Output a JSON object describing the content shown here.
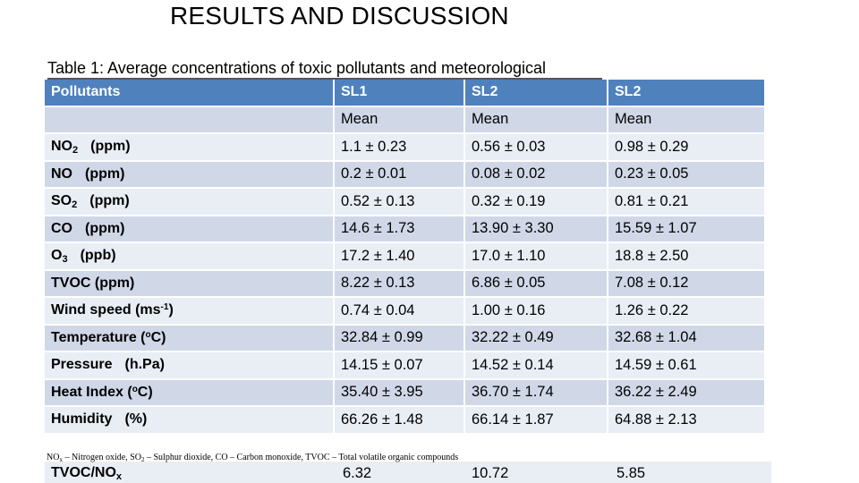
{
  "slide": {
    "title": "RESULTS AND DISCUSSION",
    "caption": "Table 1: Average concentrations of toxic pollutants and meteorological"
  },
  "table": {
    "header": [
      "Pollutants",
      "SL1",
      "SL2",
      "SL2"
    ],
    "subheader": [
      "",
      "Mean",
      "Mean",
      "Mean"
    ],
    "rows": [
      {
        "name": "NO",
        "sub": "2",
        "sup": "",
        "unit": "(ppm)",
        "v1": "1.1 ± 0.23",
        "v2": "0.56 ± 0.03",
        "v3": "0.98 ± 0.29"
      },
      {
        "name": "NO",
        "sub": "",
        "sup": "",
        "unit": "(ppm)",
        "v1": "0.2 ± 0.01",
        "v2": "0.08 ± 0.02",
        "v3": "0.23 ± 0.05"
      },
      {
        "name": "SO",
        "sub": "2",
        "sup": "",
        "unit": "(ppm)",
        "v1": "0.52 ± 0.13",
        "v2": "0.32 ± 0.19",
        "v3": "0.81 ± 0.21"
      },
      {
        "name": "CO",
        "sub": "",
        "sup": "",
        "unit": "(ppm)",
        "v1": "14.6 ± 1.73",
        "v2": "13.90 ± 3.30",
        "v3": "15.59 ± 1.07"
      },
      {
        "name": "O",
        "sub": "3",
        "sup": "",
        "unit": "(ppb)",
        "v1": "17.2 ± 1.40",
        "v2": "17.0 ± 1.10",
        "v3": "18.8 ± 2.50"
      },
      {
        "name": "TVOC (ppm)",
        "sub": "",
        "sup": "",
        "unit": "",
        "v1": "8.22 ± 0.13",
        "v2": "6.86 ± 0.05",
        "v3": "7.08 ± 0.12"
      },
      {
        "name": "Wind speed (ms",
        "sub": "",
        "sup": "-1",
        "unit": ")",
        "v1": "0.74 ± 0.04",
        "v2": "1.00 ± 0.16",
        "v3": "1.26 ± 0.22"
      },
      {
        "name": "Temperature (",
        "sub": "",
        "sup": "o",
        "unit": "C)",
        "v1": "32.84 ± 0.99",
        "v2": "32.22 ± 0.49",
        "v3": "32.68 ± 1.04"
      },
      {
        "name": "Pressure",
        "sub": "",
        "sup": "",
        "unit": "(h.Pa)",
        "v1": "14.15 ± 0.07",
        "v2": "14.52 ± 0.14",
        "v3": "14.59 ± 0.61"
      },
      {
        "name": "Heat Index (",
        "sub": "",
        "sup": "o",
        "unit": "C)",
        "v1": "35.40 ± 3.95",
        "v2": "36.70 ± 1.74",
        "v3": "36.22 ± 2.49"
      },
      {
        "name": "Humidity",
        "sub": "",
        "sup": "",
        "unit": "(%)",
        "v1": "66.26 ± 1.48",
        "v2": "66.14 ± 1.87",
        "v3": "64.88 ± 2.13"
      }
    ],
    "last_row": {
      "name": "TVOC/NO",
      "sub": "x",
      "v1": "6.32",
      "v2": "10.72",
      "v3": "5.85"
    }
  },
  "footnote": {
    "no": "NO",
    "sub": "x",
    "mid": " – Nitrogen oxide, SO",
    "sub2": "2",
    "rest": " – Sulphur dioxide, CO – Carbon monoxide, TVOC – Total volatile organic compounds"
  },
  "colors": {
    "header_bg": "#4f81bd",
    "row_odd": "#d0d8e8",
    "row_even": "#e9edf4"
  }
}
